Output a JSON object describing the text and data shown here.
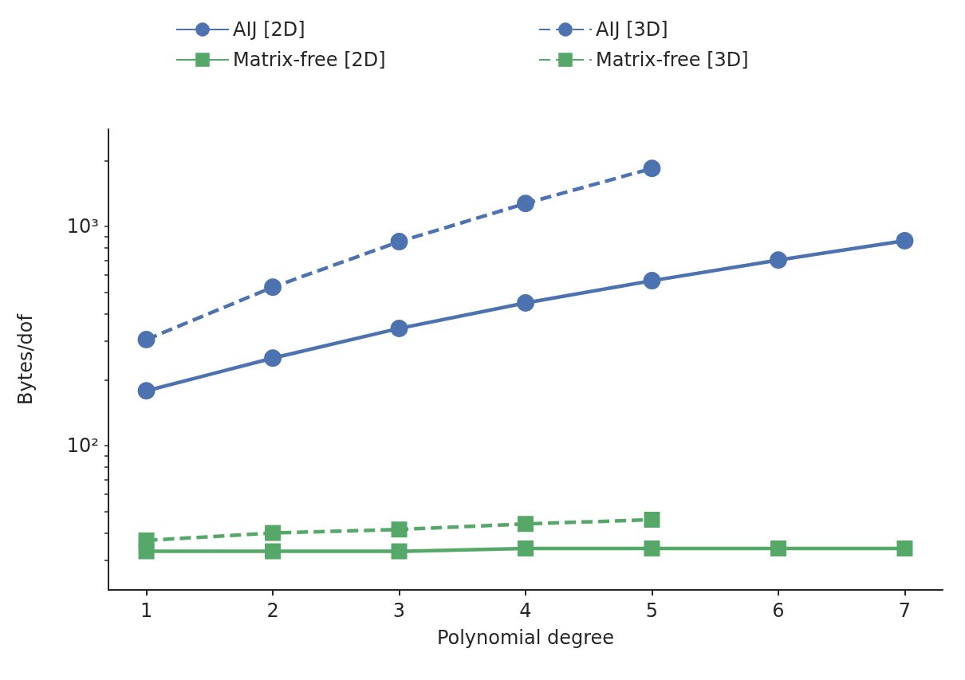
{
  "chart_data": {
    "type": "line",
    "xlabel": "Polynomial degree",
    "ylabel": "Bytes/dof",
    "x": [
      1,
      2,
      3,
      4,
      5,
      6,
      7
    ],
    "series": [
      {
        "name": "AIJ [2D]",
        "color": "#4c72b0",
        "marker": "circle",
        "line_style": "solid",
        "values": [
          178,
          251,
          343,
          448,
          566,
          703,
          861
        ]
      },
      {
        "name": "AIJ [3D]",
        "color": "#4c72b0",
        "marker": "circle",
        "line_style": "dashed",
        "values": [
          305,
          529,
          853,
          1274,
          1841,
          null,
          null
        ]
      },
      {
        "name": "Matrix-free [2D]",
        "color": "#55a868",
        "marker": "square",
        "line_style": "solid",
        "values": [
          33,
          33,
          33,
          34,
          34,
          34,
          34
        ]
      },
      {
        "name": "Matrix-free [3D]",
        "color": "#55a868",
        "marker": "square",
        "line_style": "dashed",
        "values": [
          37,
          40,
          41.5,
          44,
          46,
          null,
          null
        ]
      }
    ],
    "log": "y",
    "xlim": [
      0.7,
      7.3
    ],
    "xticks": [
      1,
      2,
      3,
      4,
      5,
      6,
      7
    ],
    "ylim": [
      22,
      2780
    ],
    "yticks": [
      {
        "value": 30,
        "label": null
      },
      {
        "value": 40,
        "label": null
      },
      {
        "value": 50,
        "label": null
      },
      {
        "value": 60,
        "label": null
      },
      {
        "value": 70,
        "label": null
      },
      {
        "value": 80,
        "label": null
      },
      {
        "value": 90,
        "label": null
      },
      {
        "value": 100,
        "label": "10²"
      },
      {
        "value": 200,
        "label": null
      },
      {
        "value": 300,
        "label": null
      },
      {
        "value": 400,
        "label": null
      },
      {
        "value": 500,
        "label": null
      },
      {
        "value": 600,
        "label": null
      },
      {
        "value": 700,
        "label": null
      },
      {
        "value": 800,
        "label": null
      },
      {
        "value": 900,
        "label": null
      },
      {
        "value": 1000,
        "label": "10³"
      },
      {
        "value": 2000,
        "label": null
      }
    ],
    "grid": false,
    "legend": "top"
  }
}
